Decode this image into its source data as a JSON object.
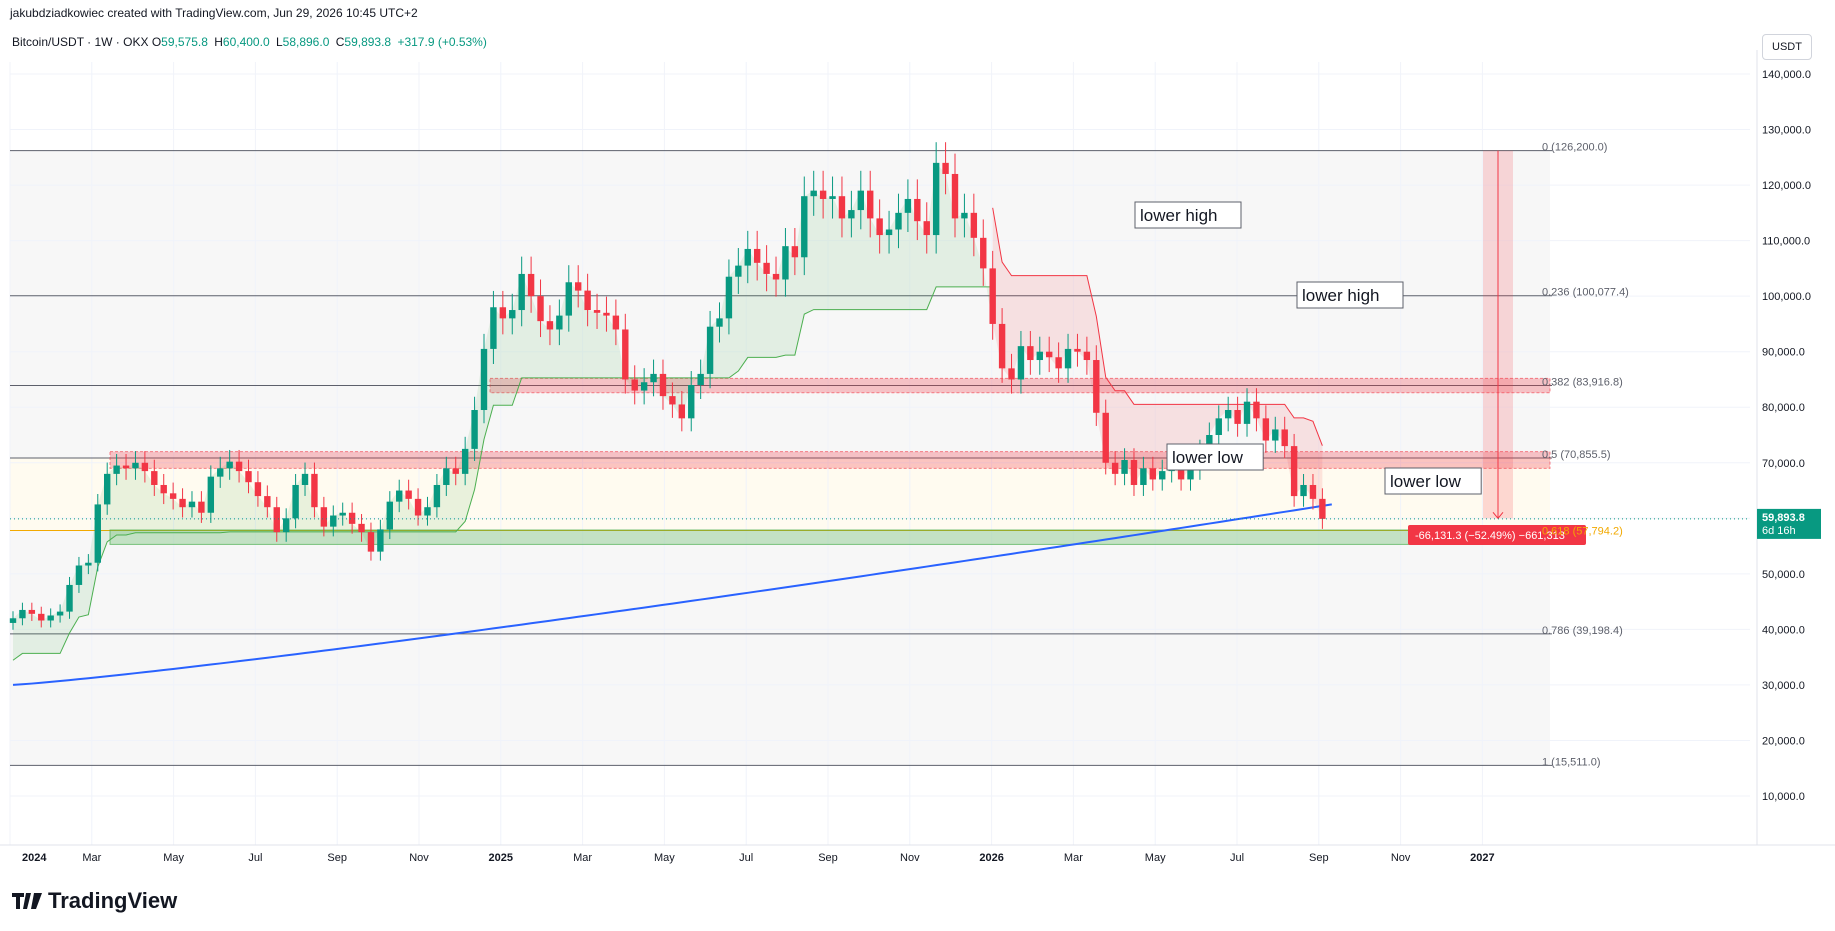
{
  "header": {
    "attribution": "jakubdziadkowiec created with TradingView.com, Jun 29, 2026 10:45 UTC+2"
  },
  "symbol": {
    "name": "Bitcoin/USDT · 1W · OKX",
    "o_label": "O",
    "o": "59,575.8",
    "h_label": "H",
    "h": "60,400.0",
    "l_label": "L",
    "l": "58,896.0",
    "c_label": "C",
    "c": "59,893.8",
    "change": "+317.9 (+0.53%)"
  },
  "currency": "USDT",
  "brand": {
    "name": "TradingView"
  },
  "colors": {
    "up": "#089981",
    "down": "#f23645",
    "ema": "#2962ff",
    "fib_gold": "#f2a900",
    "support_green": "#4caf50",
    "resistance_red": "#f23645",
    "grid": "#f0f3fa"
  },
  "chart_data": {
    "type": "candlestick",
    "y_axis": {
      "min": 0,
      "max": 145000,
      "ticks": [
        "140,000.0",
        "130,000.0",
        "120,000.0",
        "110,000.0",
        "100,000.0",
        "90,000.0",
        "80,000.0",
        "70,000.0",
        "60,000.0",
        "50,000.0",
        "40,000.0",
        "30,000.0",
        "20,000.0",
        "10,000.0"
      ],
      "tick_values": [
        140000,
        130000,
        120000,
        110000,
        100000,
        90000,
        80000,
        70000,
        60000,
        50000,
        40000,
        30000,
        20000,
        10000
      ]
    },
    "x_axis": {
      "labels": [
        "2024",
        "Mar",
        "May",
        "Jul",
        "Sep",
        "Nov",
        "2025",
        "Mar",
        "May",
        "Jul",
        "Sep",
        "Nov",
        "2026",
        "Mar",
        "May",
        "Jul",
        "Sep",
        "Nov",
        "2027"
      ],
      "label_months": [
        0,
        2,
        4,
        6,
        8,
        10,
        12,
        14,
        16,
        18,
        20,
        22,
        24,
        26,
        28,
        30,
        32,
        34,
        36
      ],
      "bold": [
        "2024",
        "2025",
        "2026",
        "2027"
      ]
    },
    "weekly_closes": [
      42000,
      43500,
      42800,
      41600,
      42500,
      43200,
      48000,
      51500,
      52000,
      62500,
      68000,
      69500,
      69000,
      70000,
      68500,
      66000,
      64500,
      63500,
      62000,
      63000,
      61000,
      67500,
      69000,
      70200,
      68500,
      66500,
      64000,
      62000,
      57500,
      60000,
      66000,
      68000,
      62000,
      58500,
      60500,
      61000,
      59000,
      57500,
      54000,
      58000,
      63000,
      65000,
      63500,
      60500,
      62000,
      66000,
      69000,
      68000,
      72500,
      79500,
      90500,
      98000,
      96000,
      97500,
      104000,
      100000,
      95500,
      94000,
      96500,
      102500,
      101000,
      97500,
      97000,
      96500,
      94000,
      85000,
      83000,
      84500,
      86000,
      82000,
      80500,
      78000,
      84000,
      86000,
      94500,
      96000,
      103500,
      105500,
      108500,
      106000,
      104000,
      103000,
      109000,
      107000,
      118000,
      119000,
      117500,
      118000,
      114000,
      115500,
      119000,
      114000,
      111000,
      112000,
      115000,
      117500,
      113500,
      111000,
      124000,
      122000,
      114000,
      115000,
      110500,
      105000,
      95000,
      87000,
      85000,
      91000,
      88500,
      90000,
      89000,
      87000,
      90500,
      90000,
      88500,
      79000,
      70000,
      68000,
      70500,
      66000,
      69000,
      67000,
      68500,
      70000,
      67000,
      69000,
      72000,
      75000,
      78000,
      79500,
      77000,
      81000,
      78000,
      74000,
      76000,
      73000,
      64000,
      66000,
      63500,
      59893.8
    ],
    "resistance_zones": [
      {
        "top": 85200,
        "bottom": 82600
      },
      {
        "top": 72000,
        "bottom": 69000
      }
    ],
    "support_zone": {
      "top": 57900,
      "bottom": 55300
    },
    "horizontal_lines": [
      126200,
      100077.4,
      83916.8,
      70855.5,
      39198.4,
      15511.0
    ],
    "fibonacci": [
      {
        "label": "0 (126,200.0)",
        "value": 126200
      },
      {
        "label": "0.236 (100,077.4)",
        "value": 100077.4
      },
      {
        "label": "0.382 (83,916.8)",
        "value": 83916.8
      },
      {
        "label": "0.5 (70,855.5)",
        "value": 70855.5
      },
      {
        "label": "0.618 (57,794.2)",
        "value": 57794.2
      },
      {
        "label": "0.786 (39,198.4)",
        "value": 39198.4
      },
      {
        "label": "1 (15,511.0)",
        "value": 15511.0
      }
    ],
    "ema_200w": {
      "start": 30000,
      "end": 62500
    },
    "annotations": [
      {
        "text": "lower high",
        "week": 106,
        "value": 100000
      },
      {
        "text": "lower high",
        "week": 128,
        "value": 89000
      },
      {
        "text": "lower low",
        "week": 107,
        "value": 52000
      },
      {
        "text": "lower low",
        "week": 134,
        "value": 48000
      }
    ],
    "measure": {
      "from": 126200,
      "to": 60000,
      "label": "-66,131.3 (−52.49%) −661,313"
    },
    "last_price": {
      "value": "59,893.8",
      "countdown": "6d 16h"
    }
  }
}
